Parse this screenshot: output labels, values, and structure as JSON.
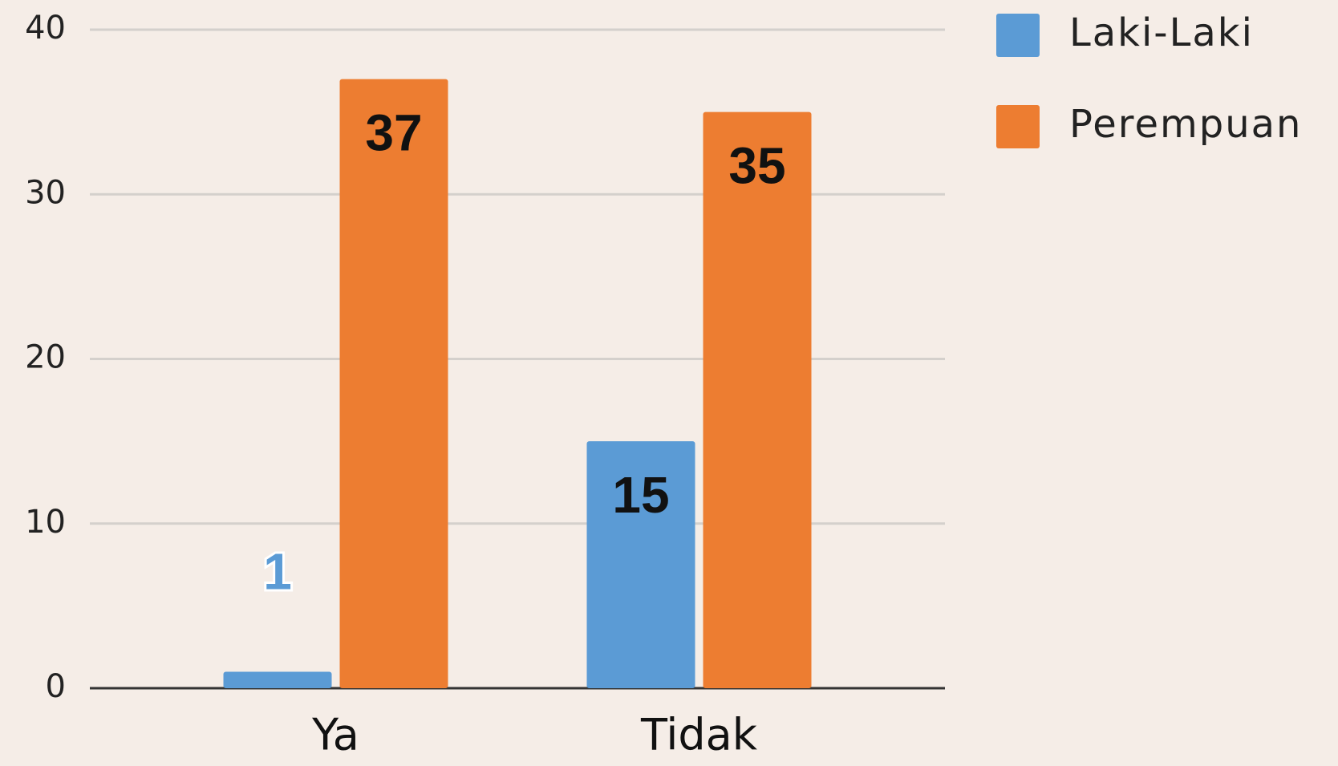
{
  "chart_data": {
    "type": "bar",
    "categories": [
      "Ya",
      "Tidak"
    ],
    "series": [
      {
        "name": "Laki-Laki",
        "color": "#5b9bd5",
        "values": [
          1,
          15
        ]
      },
      {
        "name": "Perempuan",
        "color": "#ed7d31",
        "values": [
          37,
          35
        ]
      }
    ],
    "ylim": [
      0,
      40
    ],
    "yticks": [
      0,
      10,
      20,
      30,
      40
    ],
    "grid": true,
    "legend": "right"
  }
}
